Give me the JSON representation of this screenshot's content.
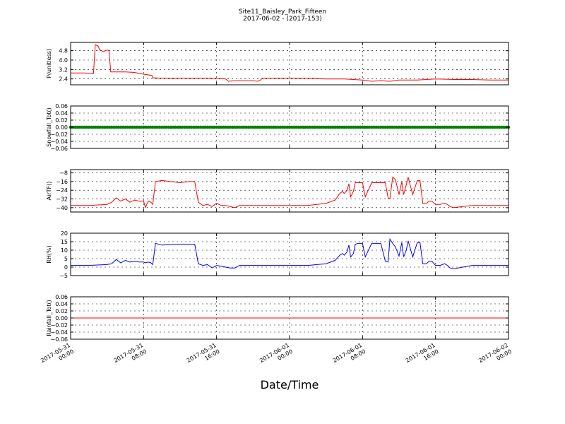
{
  "figure": {
    "title": "Site11_Baisley_Park_Fifteen",
    "subtitle": "2017-06-02 - (2017-153)",
    "xlabel": "Date/Time",
    "x_ticks": [
      {
        "h": 0,
        "line1": "2017-05-31",
        "line2": "00:00"
      },
      {
        "h": 8,
        "line1": "2017-05-31",
        "line2": "08:00"
      },
      {
        "h": 16,
        "line1": "2017-05-31",
        "line2": "16:00"
      },
      {
        "h": 24,
        "line1": "2017-06-01",
        "line2": "00:00"
      },
      {
        "h": 32,
        "line1": "2017-06-01",
        "line2": "08:00"
      },
      {
        "h": 40,
        "line1": "2017-06-01",
        "line2": "16:00"
      },
      {
        "h": 48,
        "line1": "2017-06-02",
        "line2": "00:00"
      }
    ]
  },
  "chart_data": [
    {
      "type": "line",
      "ylabel": "P(unitless)",
      "color": "#ff0000",
      "ylim": [
        1.9,
        5.5
      ],
      "yticks": [
        2.4,
        3.2,
        4.0,
        4.8
      ],
      "ytick_labels": [
        "2.4",
        "3.2",
        "4.0",
        "4.8"
      ],
      "grid": true,
      "x_hours": [
        0,
        1.5,
        2.5,
        2.7,
        3,
        3.2,
        3.4,
        3.6,
        3.8,
        4.0,
        4.2,
        4.4,
        4.5,
        5,
        6,
        7,
        8,
        8.9,
        9,
        10,
        12,
        14,
        16,
        17,
        17.3,
        18,
        20,
        20.5,
        20.8,
        21,
        22,
        24,
        26,
        28,
        30,
        32,
        33,
        34,
        35,
        36,
        38,
        40,
        42,
        44,
        46,
        48
      ],
      "y": [
        2.9,
        2.9,
        2.85,
        5.3,
        5.2,
        4.85,
        4.8,
        4.7,
        4.8,
        4.85,
        4.8,
        3.0,
        3.0,
        3.0,
        3.0,
        2.95,
        2.8,
        2.7,
        2.5,
        2.45,
        2.45,
        2.45,
        2.45,
        2.4,
        2.2,
        2.25,
        2.25,
        2.2,
        2.3,
        2.45,
        2.45,
        2.45,
        2.45,
        2.4,
        2.4,
        2.3,
        2.2,
        2.25,
        2.2,
        2.3,
        2.3,
        2.4,
        2.35,
        2.35,
        2.3,
        2.3
      ]
    },
    {
      "type": "scatter",
      "ylabel": "Snowfall_Tot()",
      "color": "#008000",
      "ylim": [
        -0.06,
        0.06
      ],
      "yticks": [
        -0.06,
        -0.04,
        -0.02,
        0.0,
        0.02,
        0.04,
        0.06
      ],
      "ytick_labels": [
        "−0.06",
        "−0.04",
        "−0.02",
        "0.00",
        "0.02",
        "0.04",
        "0.06"
      ],
      "grid": true,
      "x_range_hours": [
        0,
        48
      ],
      "constant_value": 0.0
    },
    {
      "type": "line",
      "ylabel": "AirTF()",
      "color": "#ff0000",
      "ylim": [
        -44,
        -5
      ],
      "yticks": [
        -40,
        -32,
        -24,
        -16,
        -8
      ],
      "ytick_labels": [
        "−40",
        "−32",
        "−24",
        "−16",
        "−8"
      ],
      "grid": true,
      "x_hours": [
        0,
        2,
        4,
        4.5,
        5,
        5.5,
        6,
        6.5,
        7,
        7.5,
        8,
        8.2,
        8.5,
        8.8,
        9,
        9.3,
        10,
        12,
        13,
        13.6,
        14,
        14.5,
        15,
        15.5,
        16,
        16.5,
        17,
        17.5,
        18,
        18.5,
        20,
        22,
        24,
        26,
        27,
        28,
        29,
        29.5,
        29.8,
        30,
        30.3,
        30.5,
        30.7,
        31,
        31.2,
        31.5,
        32,
        32.3,
        33,
        34,
        34.5,
        34.8,
        35,
        35.3,
        35.6,
        36,
        36.3,
        36.5,
        36.8,
        37,
        37.5,
        38,
        38.3,
        38.6,
        39,
        39.3,
        39.6,
        40,
        40.5,
        41,
        41.3,
        41.6,
        42,
        44,
        46,
        48
      ],
      "y": [
        -38,
        -38,
        -37,
        -35,
        -31,
        -34,
        -32,
        -35,
        -33,
        -34,
        -34,
        -40,
        -34,
        -35,
        -37,
        -16,
        -15,
        -17,
        -16,
        -16,
        -35,
        -38,
        -37,
        -39,
        -36,
        -38,
        -38,
        -39,
        -40,
        -38,
        -38,
        -38,
        -38,
        -38,
        -37,
        -36,
        -33,
        -27,
        -25,
        -27,
        -24,
        -18,
        -30,
        -25,
        -17,
        -17,
        -17,
        -30,
        -17,
        -17,
        -17,
        -31,
        -32,
        -12,
        -14,
        -28,
        -16,
        -28,
        -19,
        -12,
        -28,
        -15,
        -15,
        -36,
        -36,
        -34,
        -34,
        -37,
        -37,
        -36,
        -37,
        -39,
        -40,
        -38,
        -38,
        -38
      ]
    },
    {
      "type": "line",
      "ylabel": "RH(%)",
      "color": "#0000ff",
      "ylim": [
        -5,
        20
      ],
      "yticks": [
        -5,
        0,
        5,
        10,
        15,
        20
      ],
      "ytick_labels": [
        "−5",
        "0",
        "5",
        "10",
        "15",
        "20"
      ],
      "grid": true,
      "x_hours": [
        0,
        2,
        4,
        4.5,
        5,
        5.5,
        6,
        6.5,
        7,
        7.5,
        8,
        8.2,
        8.5,
        8.8,
        9,
        9.3,
        10,
        12,
        13,
        13.6,
        14,
        14.5,
        15,
        15.5,
        16,
        16.5,
        17,
        17.5,
        18,
        18.5,
        20,
        22,
        24,
        26,
        27,
        28,
        29,
        29.5,
        29.8,
        30,
        30.3,
        30.5,
        30.7,
        31,
        31.2,
        31.5,
        32,
        32.3,
        33,
        34,
        34.5,
        34.8,
        35,
        35.3,
        35.6,
        36,
        36.3,
        36.5,
        36.8,
        37,
        37.5,
        38,
        38.3,
        38.6,
        39,
        39.3,
        39.6,
        40,
        40.5,
        41,
        41.3,
        41.6,
        42,
        44,
        46,
        48
      ],
      "y": [
        1,
        1,
        1.5,
        2,
        4.5,
        2.5,
        4,
        3,
        3.5,
        3,
        3,
        2.5,
        3,
        2.5,
        1.5,
        14,
        13,
        13.5,
        13.5,
        13.5,
        2,
        1,
        1.5,
        -0.5,
        1,
        0.5,
        0,
        -0.5,
        -0.5,
        1,
        1,
        1,
        1,
        1,
        1.5,
        2,
        4,
        7,
        8,
        7,
        9,
        13,
        6,
        8,
        13.5,
        14,
        14,
        6,
        14,
        14,
        3.5,
        3,
        16.5,
        14,
        12,
        6.5,
        14.5,
        6,
        10,
        15.5,
        6,
        14.5,
        14.5,
        2,
        2,
        3.5,
        3.5,
        1,
        1,
        2,
        1,
        -0.5,
        -1,
        1,
        1,
        1
      ]
    },
    {
      "type": "line",
      "ylabel": "Rainfall_Tot()",
      "color": "#ff0000",
      "ylim": [
        -0.06,
        0.06
      ],
      "yticks": [
        -0.06,
        -0.04,
        -0.02,
        0.0,
        0.02,
        0.04,
        0.06
      ],
      "ytick_labels": [
        "−0.06",
        "−0.04",
        "−0.02",
        "0.00",
        "0.02",
        "0.04",
        "0.06"
      ],
      "grid": true,
      "x_hours": [
        0,
        48
      ],
      "y": [
        0,
        0
      ]
    }
  ]
}
